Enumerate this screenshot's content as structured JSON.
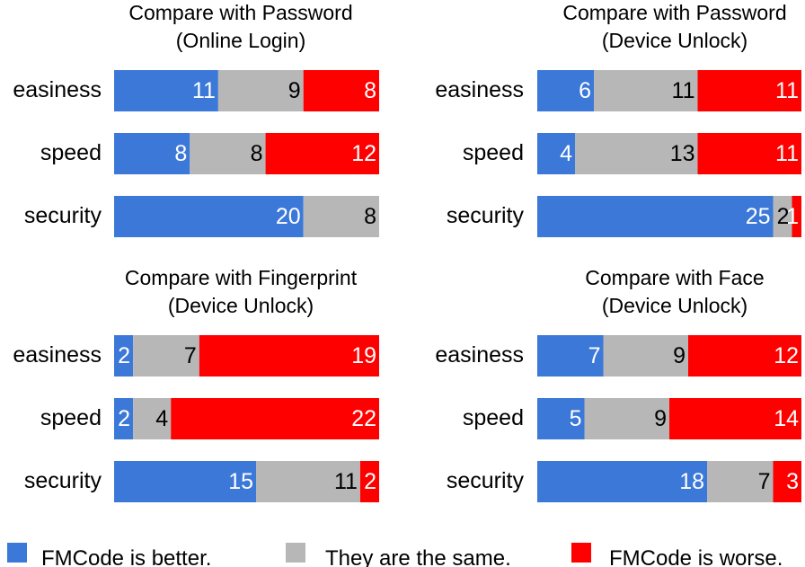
{
  "chart_data": [
    {
      "type": "bar",
      "orientation": "horizontal",
      "stacked": true,
      "title": "Compare with Password",
      "subtitle": "(Online Login)",
      "categories": [
        "easiness",
        "speed",
        "security"
      ],
      "series": [
        {
          "name": "FMCode is better.",
          "values": [
            11,
            8,
            20
          ]
        },
        {
          "name": "They are the same.",
          "values": [
            9,
            8,
            8
          ]
        },
        {
          "name": "FMCode is worse.",
          "values": [
            8,
            12,
            0
          ]
        }
      ]
    },
    {
      "type": "bar",
      "orientation": "horizontal",
      "stacked": true,
      "title": "Compare with Password",
      "subtitle": "(Device Unlock)",
      "categories": [
        "easiness",
        "speed",
        "security"
      ],
      "series": [
        {
          "name": "FMCode is better.",
          "values": [
            6,
            4,
            25
          ]
        },
        {
          "name": "They are the same.",
          "values": [
            11,
            13,
            2
          ]
        },
        {
          "name": "FMCode is worse.",
          "values": [
            11,
            11,
            1
          ]
        }
      ]
    },
    {
      "type": "bar",
      "orientation": "horizontal",
      "stacked": true,
      "title": "Compare with Fingerprint",
      "subtitle": "(Device Unlock)",
      "categories": [
        "easiness",
        "speed",
        "security"
      ],
      "series": [
        {
          "name": "FMCode is better.",
          "values": [
            2,
            2,
            15
          ]
        },
        {
          "name": "They are the same.",
          "values": [
            7,
            4,
            11
          ]
        },
        {
          "name": "FMCode is worse.",
          "values": [
            19,
            22,
            2
          ]
        }
      ]
    },
    {
      "type": "bar",
      "orientation": "horizontal",
      "stacked": true,
      "title": "Compare with Face",
      "subtitle": "(Device Unlock)",
      "categories": [
        "easiness",
        "speed",
        "security"
      ],
      "series": [
        {
          "name": "FMCode is better.",
          "values": [
            7,
            5,
            18
          ]
        },
        {
          "name": "They are the same.",
          "values": [
            9,
            9,
            7
          ]
        },
        {
          "name": "FMCode is worse.",
          "values": [
            12,
            14,
            3
          ]
        }
      ]
    }
  ],
  "colors": {
    "better": "#3c78d8",
    "same": "#b7b7b7",
    "worse": "#ff0000",
    "label_on_blue": "#ffffff",
    "label_on_gray": "#000000",
    "label_on_red": "#ffffff"
  },
  "legend": {
    "placement": "bottom",
    "items": [
      {
        "label": "FMCode is better.",
        "color_key": "better"
      },
      {
        "label": "They are the same.",
        "color_key": "same"
      },
      {
        "label": "FMCode is worse.",
        "color_key": "worse"
      }
    ]
  }
}
